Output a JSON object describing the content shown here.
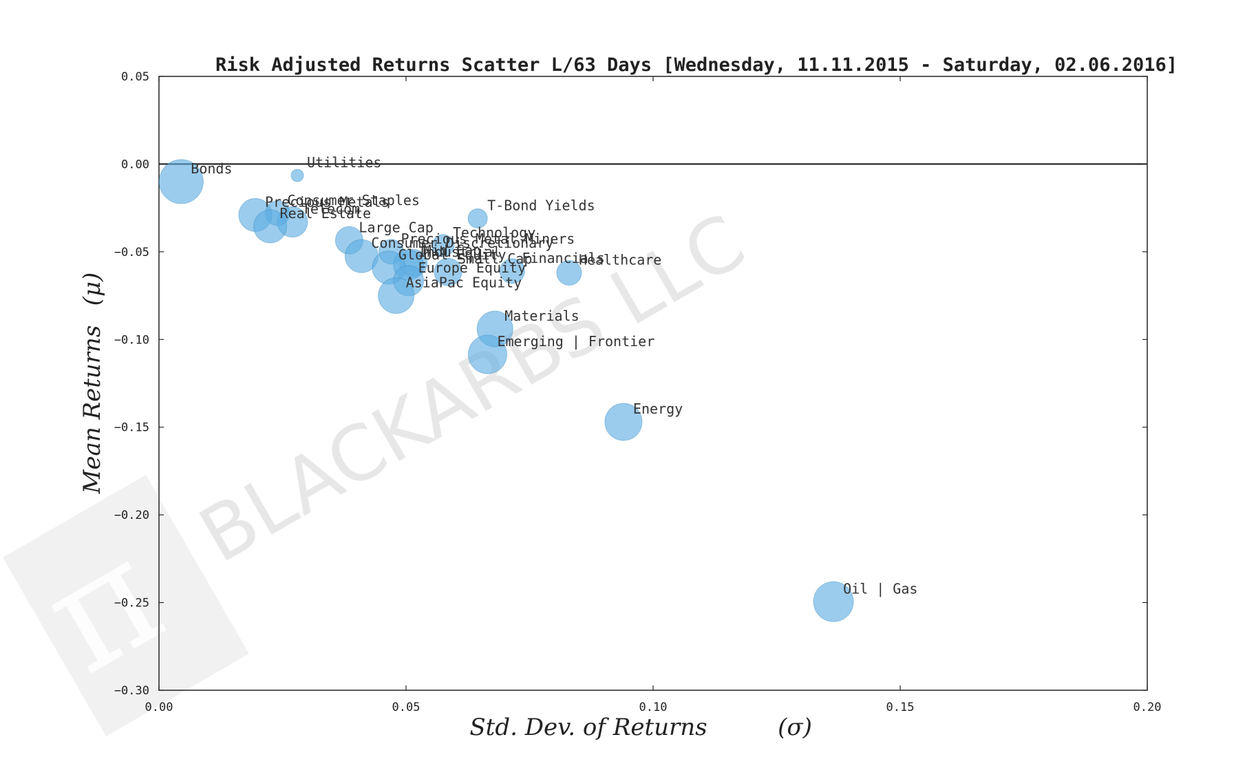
{
  "chart_data": {
    "type": "scatter",
    "title": "Risk Adjusted Returns Scatter L/63 Days [Wednesday, 11.11.2015 - Saturday, 02.06.2016]",
    "xlabel": "Std. Dev. of Returns",
    "xlabel_symbol": "(σ)",
    "ylabel": "Mean Returns",
    "ylabel_symbol": "(μ)",
    "xlim": [
      0.0,
      0.2
    ],
    "ylim": [
      -0.3,
      0.05
    ],
    "xticks": [
      "0.00",
      "0.05",
      "0.10",
      "0.15",
      "0.20"
    ],
    "yticks": [
      "0.05",
      "0.00",
      "−0.05",
      "−0.10",
      "−0.15",
      "−0.20",
      "−0.25",
      "−0.30"
    ],
    "grid": false,
    "zero_line": true,
    "marker_color": "#5dade2",
    "watermark": "BLACKARBS LLC",
    "points": [
      {
        "label": "Bonds",
        "x": 0.0045,
        "y": -0.01,
        "size": 32
      },
      {
        "label": "Utilities",
        "x": 0.028,
        "y": -0.0065,
        "size": 9
      },
      {
        "label": "Consumer Staples",
        "x": 0.024,
        "y": -0.028,
        "size": 18
      },
      {
        "label": "Precious Metals",
        "x": 0.0195,
        "y": -0.029,
        "size": 24
      },
      {
        "label": "Telecom",
        "x": 0.027,
        "y": -0.033,
        "size": 22
      },
      {
        "label": "Real Estate",
        "x": 0.0225,
        "y": -0.0355,
        "size": 24
      },
      {
        "label": "T-Bond Yields",
        "x": 0.0645,
        "y": -0.031,
        "size": 14
      },
      {
        "label": "Large Cap",
        "x": 0.0385,
        "y": -0.0435,
        "size": 20
      },
      {
        "label": "Technology",
        "x": 0.0575,
        "y": -0.0465,
        "size": 16
      },
      {
        "label": "Precious Metal Miners",
        "x": 0.047,
        "y": -0.05,
        "size": 18
      },
      {
        "label": "Consumer Discretionary",
        "x": 0.041,
        "y": -0.0525,
        "size": 24
      },
      {
        "label": "Mid Cap",
        "x": 0.0515,
        "y": -0.0565,
        "size": 20
      },
      {
        "label": "Industrial",
        "x": 0.0505,
        "y": -0.0575,
        "size": 22
      },
      {
        "label": "Global Equity",
        "x": 0.0465,
        "y": -0.059,
        "size": 24
      },
      {
        "label": "Financials",
        "x": 0.0715,
        "y": -0.061,
        "size": 18
      },
      {
        "label": "Healthcare",
        "x": 0.083,
        "y": -0.062,
        "size": 18
      },
      {
        "label": "Small Cap",
        "x": 0.0585,
        "y": -0.0615,
        "size": 20
      },
      {
        "label": "Europe Equity",
        "x": 0.0505,
        "y": -0.0665,
        "size": 22
      },
      {
        "label": "AsiaPac Equity",
        "x": 0.048,
        "y": -0.075,
        "size": 26
      },
      {
        "label": "Materials",
        "x": 0.068,
        "y": -0.094,
        "size": 26
      },
      {
        "label": "Emerging | Frontier",
        "x": 0.0665,
        "y": -0.1085,
        "size": 28
      },
      {
        "label": "Energy",
        "x": 0.094,
        "y": -0.147,
        "size": 27
      },
      {
        "label": "Oil | Gas",
        "x": 0.1365,
        "y": -0.2495,
        "size": 29
      }
    ]
  }
}
